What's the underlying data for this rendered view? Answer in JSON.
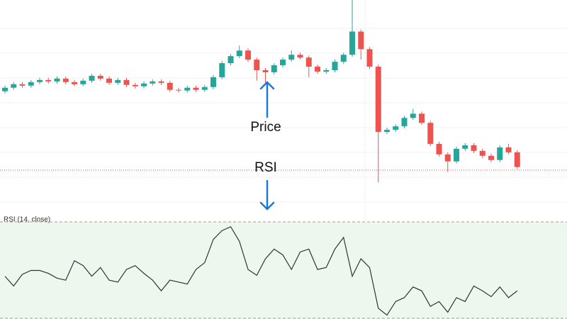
{
  "chart_data": [
    {
      "type": "candlestick",
      "annotations": [
        "Price",
        "RSI"
      ],
      "up_color": "#26a69a",
      "down_color": "#ef5350",
      "ylim": [
        0,
        300
      ],
      "open": [
        170,
        175,
        180,
        178,
        183,
        186,
        184,
        188,
        183,
        180,
        185,
        192,
        188,
        182,
        186,
        179,
        177,
        181,
        184,
        182,
        172,
        171,
        175,
        172,
        176,
        190,
        210,
        220,
        228,
        215,
        200,
        197,
        207,
        215,
        222,
        218,
        205,
        198,
        200,
        212,
        222,
        255,
        230,
        205,
        112,
        115,
        120,
        132,
        138,
        125,
        95,
        80,
        70,
        88,
        93,
        85,
        78,
        72,
        90,
        83
      ],
      "high": [
        178,
        183,
        183,
        186,
        189,
        189,
        191,
        191,
        186,
        188,
        195,
        195,
        191,
        189,
        189,
        182,
        184,
        187,
        187,
        185,
        175,
        178,
        178,
        179,
        193,
        213,
        223,
        235,
        231,
        218,
        203,
        210,
        218,
        228,
        225,
        221,
        208,
        203,
        215,
        225,
        300,
        258,
        233,
        208,
        118,
        123,
        135,
        145,
        141,
        128,
        98,
        83,
        91,
        96,
        96,
        88,
        81,
        93,
        95,
        86
      ],
      "low": [
        167,
        172,
        175,
        175,
        180,
        181,
        181,
        180,
        177,
        177,
        182,
        185,
        179,
        179,
        176,
        174,
        174,
        178,
        179,
        169,
        168,
        168,
        169,
        169,
        173,
        187,
        207,
        217,
        212,
        185,
        182,
        194,
        204,
        212,
        215,
        190,
        195,
        195,
        197,
        209,
        219,
        215,
        202,
        40,
        109,
        112,
        117,
        129,
        122,
        92,
        77,
        55,
        67,
        85,
        82,
        75,
        69,
        69,
        80,
        59
      ],
      "close": [
        175,
        180,
        178,
        183,
        186,
        184,
        188,
        183,
        180,
        185,
        192,
        188,
        182,
        186,
        179,
        177,
        181,
        184,
        182,
        172,
        171,
        175,
        172,
        176,
        190,
        210,
        220,
        228,
        215,
        200,
        197,
        207,
        215,
        222,
        218,
        205,
        198,
        200,
        212,
        222,
        255,
        230,
        205,
        112,
        115,
        120,
        132,
        138,
        125,
        95,
        80,
        70,
        88,
        93,
        85,
        78,
        72,
        90,
        83,
        62
      ]
    },
    {
      "type": "line",
      "title": "RSI (14, close)",
      "color": "#333333",
      "ylim": [
        0,
        100
      ],
      "values": [
        44,
        34,
        46,
        50,
        50,
        47,
        42,
        40,
        60,
        55,
        44,
        53,
        40,
        38,
        51,
        55,
        47,
        40,
        29,
        40,
        38,
        36,
        51,
        58,
        82,
        91,
        95,
        80,
        51,
        45,
        62,
        72,
        66,
        51,
        69,
        72,
        51,
        53,
        72,
        84,
        44,
        62,
        53,
        11,
        4,
        18,
        22,
        33,
        29,
        13,
        18,
        7,
        22,
        18,
        34,
        29,
        23,
        33,
        22,
        29
      ]
    }
  ]
}
